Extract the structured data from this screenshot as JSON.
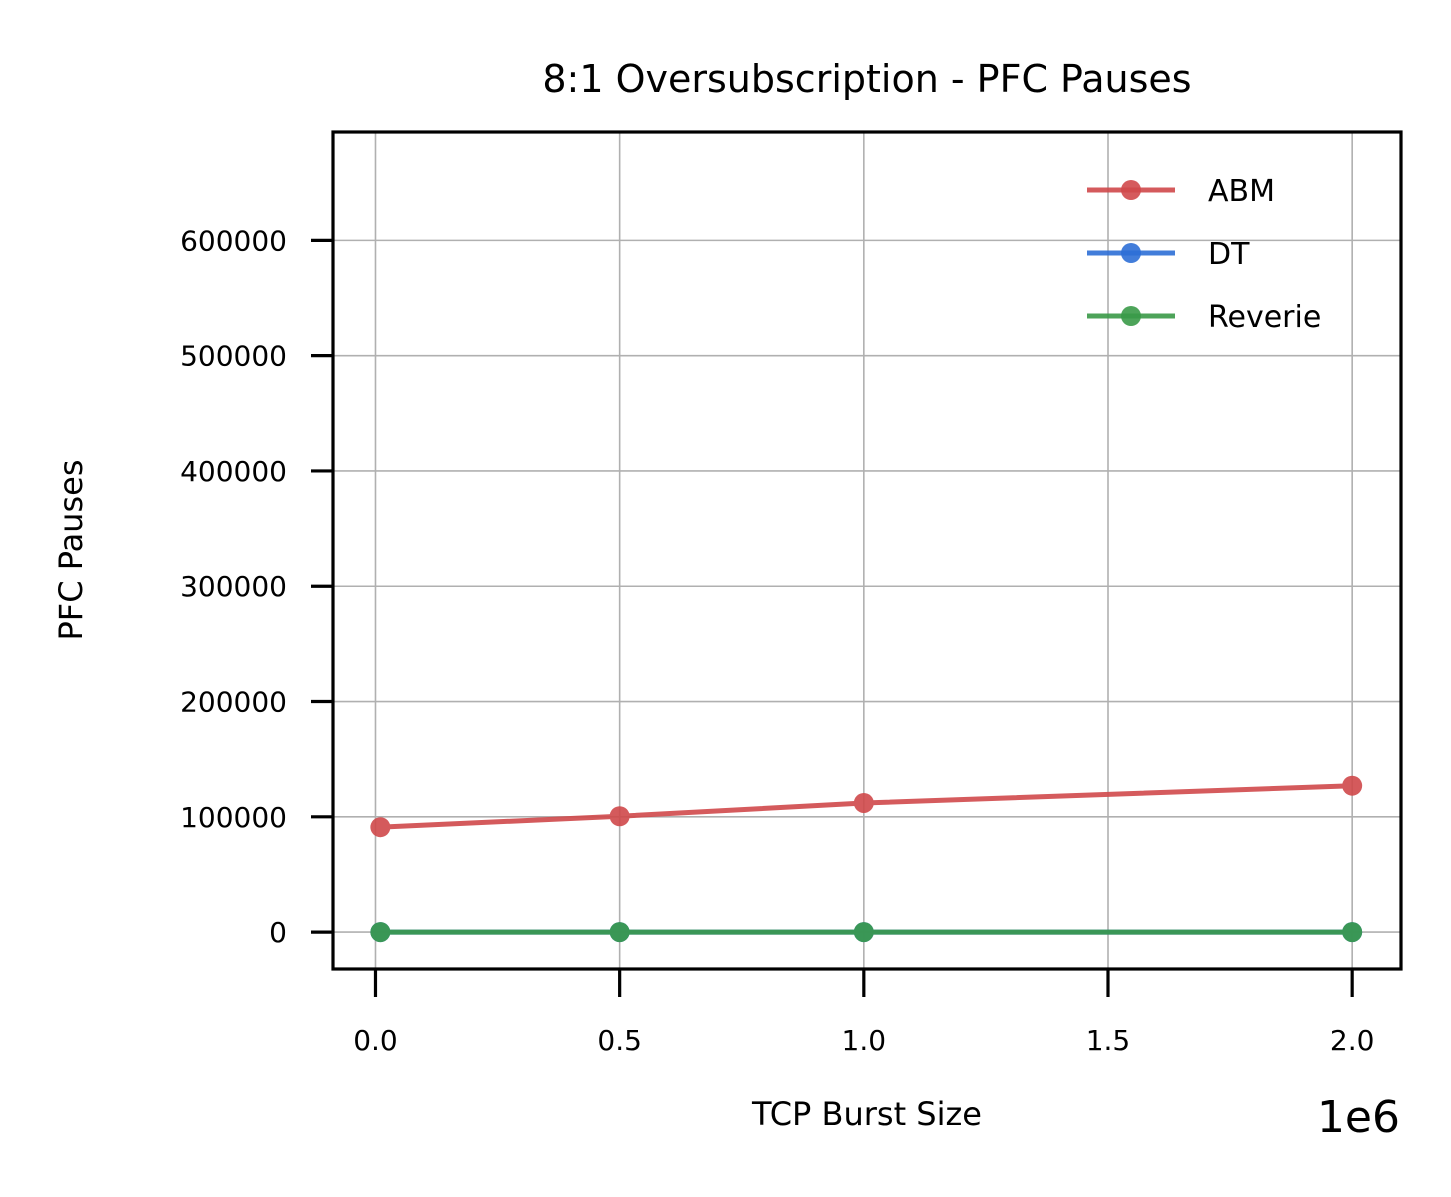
{
  "chart_data": {
    "type": "line",
    "title": "8:1 Oversubscription - PFC Pauses",
    "xlabel": "TCP Burst Size",
    "ylabel": "PFC Pauses",
    "x_offset_label": "1e6",
    "xlim": [
      -0.087,
      2.1
    ],
    "ylim": [
      -32000,
      694000
    ],
    "xticks": [
      0.0,
      0.5,
      1.0,
      1.5,
      2.0
    ],
    "xtick_labels": [
      "0.0",
      "0.5",
      "1.0",
      "1.5",
      "2.0"
    ],
    "yticks": [
      0,
      100000,
      200000,
      300000,
      400000,
      500000,
      600000
    ],
    "ytick_labels": [
      "0",
      "100000",
      "200000",
      "300000",
      "400000",
      "500000",
      "600000"
    ],
    "grid": true,
    "legend_position": "top-right",
    "x": [
      0.01,
      0.5,
      1.0,
      2.0
    ],
    "series": [
      {
        "name": "ABM",
        "color": "#d0494b",
        "values": [
          91000,
          100500,
          112000,
          127000
        ]
      },
      {
        "name": "DT",
        "color": "#2e6fd6",
        "values": [
          0,
          0,
          0,
          0
        ]
      },
      {
        "name": "Reverie",
        "color": "#3a9a48",
        "values": [
          0,
          0,
          0,
          0
        ]
      }
    ]
  }
}
